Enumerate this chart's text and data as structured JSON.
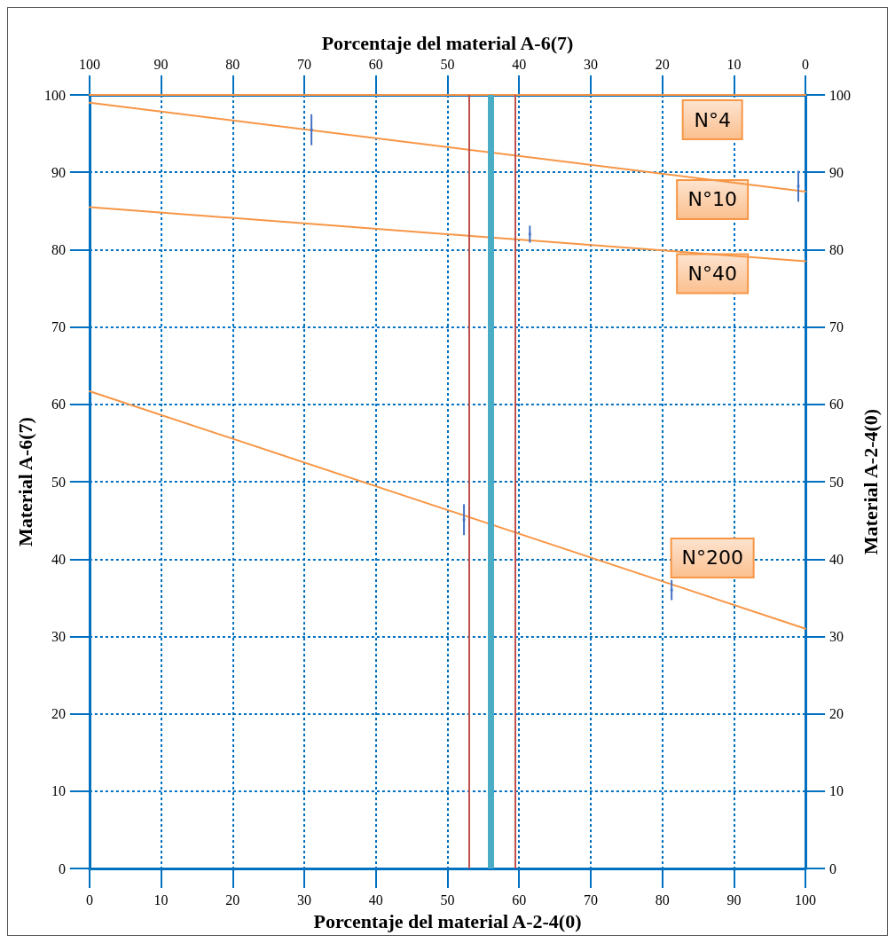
{
  "chart_data": {
    "type": "line",
    "x2label": "Porcentaje del material A-6(7)",
    "xlabel": "Porcentaje del material A-2-4(0)",
    "ylabel": "Material A-6(7)",
    "y2label": "Material A-2-4(0)",
    "xlim": [
      0,
      100
    ],
    "xticks": [
      0,
      10,
      20,
      30,
      40,
      50,
      60,
      70,
      80,
      90,
      100
    ],
    "x2lim": [
      100,
      0
    ],
    "x2ticks": [
      100,
      90,
      80,
      70,
      60,
      50,
      40,
      30,
      20,
      10,
      0
    ],
    "ylim": [
      0,
      100
    ],
    "yticks": [
      0,
      10,
      20,
      30,
      40,
      50,
      60,
      70,
      80,
      90,
      100
    ],
    "y2lim": [
      0,
      100
    ],
    "y2ticks": [
      0,
      10,
      20,
      30,
      40,
      50,
      60,
      70,
      80,
      90,
      100
    ],
    "grid": true,
    "legend": false,
    "marker": "none",
    "line_style": "solid",
    "series": [
      {
        "name": "N°4",
        "color": "#f79646",
        "x": [
          0,
          100
        ],
        "values": [
          100,
          100
        ]
      },
      {
        "name": "N°10",
        "color": "#f79646",
        "x": [
          0,
          100
        ],
        "values": [
          99,
          87.5
        ]
      },
      {
        "name": "N°40",
        "color": "#f79646",
        "x": [
          0,
          100
        ],
        "values": [
          85.5,
          78.5
        ]
      },
      {
        "name": "N°200",
        "color": "#f79646",
        "x": [
          0,
          100
        ],
        "values": [
          61.7,
          31
        ]
      },
      {
        "type": "scatter",
        "color": "#4472c4",
        "marker": "square",
        "x": [
          31,
          61.5,
          99,
          52.3,
          81.3
        ],
        "values": [
          95.5,
          82,
          88.2,
          45.1,
          36
        ],
        "errors": [
          2,
          1.1,
          2,
          2,
          1.3
        ]
      }
    ],
    "ref_lines": [
      {
        "axis": "x",
        "value": 53,
        "color": "#c0504d",
        "line_style": "solid"
      },
      {
        "axis": "x",
        "value": 59.5,
        "color": "#c0504d",
        "line_style": "solid"
      },
      {
        "axis": "x",
        "value": 56,
        "color": "#4bacc6",
        "line_style": "solid"
      }
    ]
  }
}
